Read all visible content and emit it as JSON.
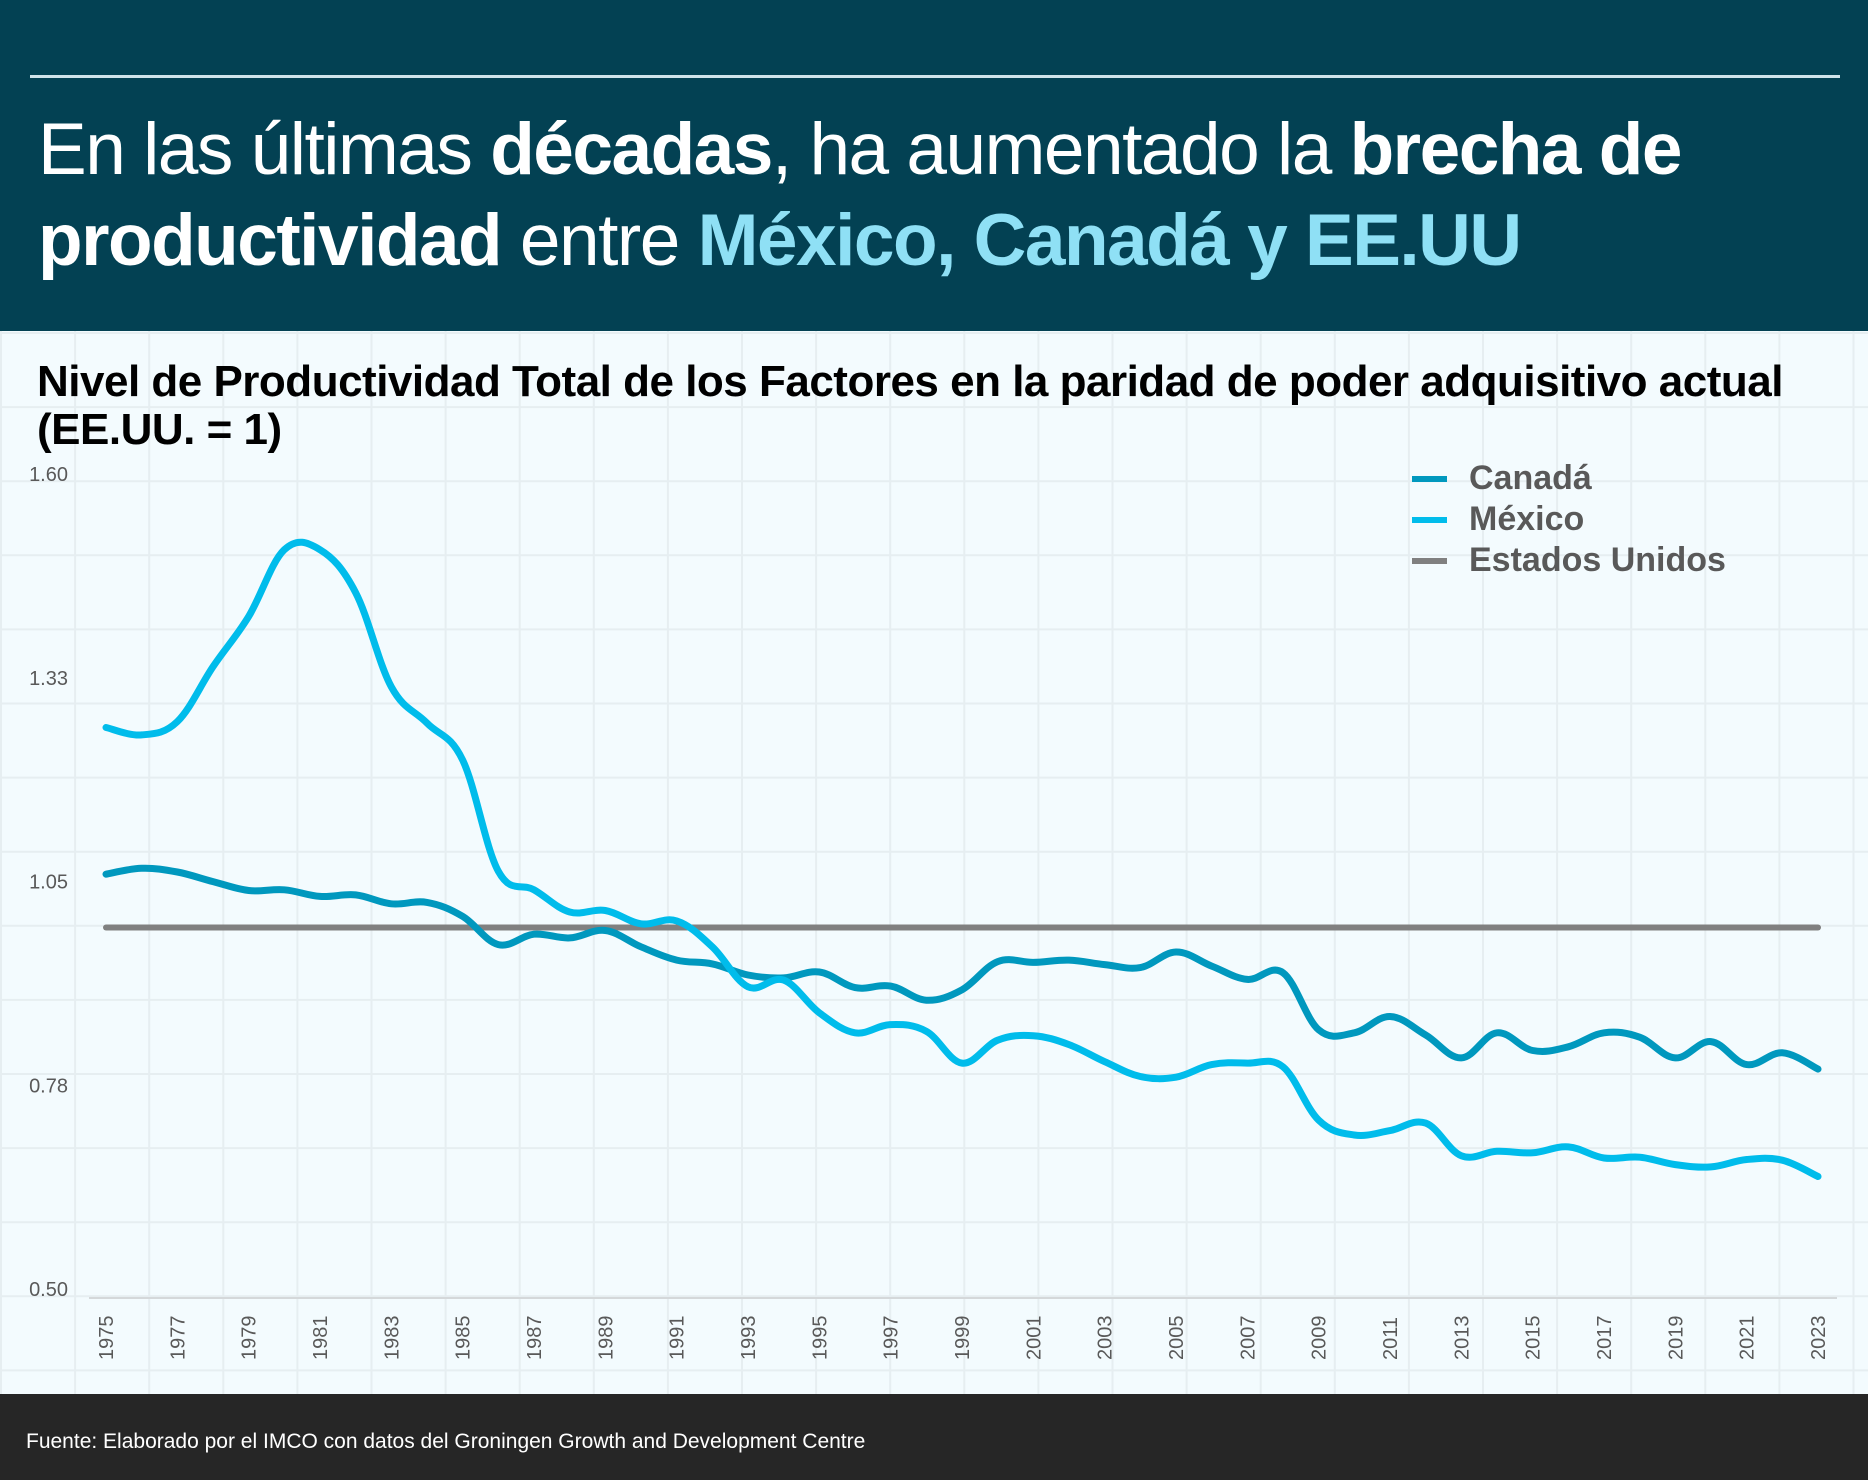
{
  "header": {
    "headline_parts": [
      {
        "text": "En las últimas ",
        "style": "normal"
      },
      {
        "text": "décadas",
        "style": "bold"
      },
      {
        "text": ", ha aumentado la ",
        "style": "normal"
      },
      {
        "text": "brecha de productividad",
        "style": "bold"
      },
      {
        "text": " entre ",
        "style": "normal"
      },
      {
        "text": "México, Canadá y EE.UU",
        "style": "highlight"
      }
    ]
  },
  "colors": {
    "header_bg": "#034153",
    "highlight": "#8FE0F5",
    "canada": "#0098BE",
    "mexico": "#00BCEB",
    "usa": "#808080",
    "footer_bg": "#262626"
  },
  "footer": {
    "source": "Fuente: Elaborado por el IMCO con datos del Groningen Growth and Development Centre"
  },
  "chart_data": {
    "type": "line",
    "title": "Nivel de Productividad Total de los Factores en la paridad de poder adquisitivo actual (EE.UU. = 1)",
    "xlabel": "",
    "ylabel": "",
    "ylim": [
      0.5,
      1.6
    ],
    "yticks": [
      "1.60",
      "1.33",
      "1.05",
      "0.78",
      "0.50"
    ],
    "ytick_values": [
      1.6,
      1.325,
      1.05,
      0.775,
      0.5
    ],
    "xlim": [
      1975,
      2023
    ],
    "xticks": [
      "1975",
      "1977",
      "1979",
      "1981",
      "1983",
      "1985",
      "1987",
      "1989",
      "1991",
      "1993",
      "1995",
      "1997",
      "1999",
      "2001",
      "2003",
      "2005",
      "2007",
      "2009",
      "2011",
      "2013",
      "2015",
      "2017",
      "2019",
      "2021",
      "2023"
    ],
    "grid": true,
    "legend_position": "top-right",
    "x": [
      1975,
      1976,
      1977,
      1978,
      1979,
      1980,
      1981,
      1982,
      1983,
      1984,
      1985,
      1986,
      1987,
      1988,
      1989,
      1990,
      1991,
      1992,
      1993,
      1994,
      1995,
      1996,
      1997,
      1998,
      1999,
      2000,
      2001,
      2002,
      2003,
      2004,
      2005,
      2006,
      2007,
      2008,
      2009,
      2010,
      2011,
      2012,
      2013,
      2014,
      2015,
      2016,
      2017,
      2018,
      2019,
      2020,
      2021,
      2022,
      2023
    ],
    "series": [
      {
        "name": "Canadá",
        "color": "#0098BE",
        "values": [
          1.072,
          1.08,
          1.075,
          1.062,
          1.05,
          1.051,
          1.042,
          1.044,
          1.032,
          1.034,
          1.015,
          0.977,
          0.991,
          0.986,
          0.996,
          0.974,
          0.956,
          0.951,
          0.936,
          0.932,
          0.94,
          0.919,
          0.921,
          0.902,
          0.916,
          0.954,
          0.953,
          0.956,
          0.95,
          0.946,
          0.967,
          0.948,
          0.93,
          0.939,
          0.862,
          0.858,
          0.88,
          0.855,
          0.824,
          0.858,
          0.834,
          0.839,
          0.858,
          0.852,
          0.824,
          0.846,
          0.815,
          0.831,
          0.809
        ]
      },
      {
        "name": "México",
        "color": "#00BCEB",
        "values": [
          1.27,
          1.26,
          1.278,
          1.352,
          1.42,
          1.51,
          1.51,
          1.452,
          1.325,
          1.276,
          1.226,
          1.076,
          1.051,
          1.021,
          1.023,
          1.005,
          1.009,
          0.974,
          0.92,
          0.929,
          0.885,
          0.858,
          0.869,
          0.86,
          0.817,
          0.848,
          0.854,
          0.842,
          0.819,
          0.799,
          0.798,
          0.815,
          0.817,
          0.812,
          0.74,
          0.72,
          0.726,
          0.736,
          0.692,
          0.698,
          0.696,
          0.704,
          0.689,
          0.69,
          0.68,
          0.677,
          0.687,
          0.686,
          0.664
        ]
      },
      {
        "name": "Estados Unidos",
        "color": "#808080",
        "values": [
          1,
          1,
          1,
          1,
          1,
          1,
          1,
          1,
          1,
          1,
          1,
          1,
          1,
          1,
          1,
          1,
          1,
          1,
          1,
          1,
          1,
          1,
          1,
          1,
          1,
          1,
          1,
          1,
          1,
          1,
          1,
          1,
          1,
          1,
          1,
          1,
          1,
          1,
          1,
          1,
          1,
          1,
          1,
          1,
          1,
          1,
          1,
          1,
          1
        ]
      }
    ]
  }
}
